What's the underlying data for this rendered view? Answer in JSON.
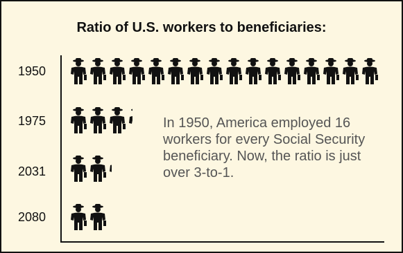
{
  "chart_data": {
    "type": "pictograph",
    "title": "Ratio of U.S. workers to beneficiaries:",
    "categories": [
      "1950",
      "1975",
      "2031",
      "2080"
    ],
    "values": [
      16,
      3.3,
      2.2,
      2.0
    ],
    "unit": "workers per beneficiary",
    "icon": "worker-icon",
    "annotation": "In 1950, America employed 16 workers for every Social Security beneficiary. Now, the ratio is just over 3-to-1.",
    "grid": false,
    "legend": "none"
  },
  "colors": {
    "background": "#fdf7e1",
    "ink": "#111111",
    "annotation_text": "#555555"
  }
}
